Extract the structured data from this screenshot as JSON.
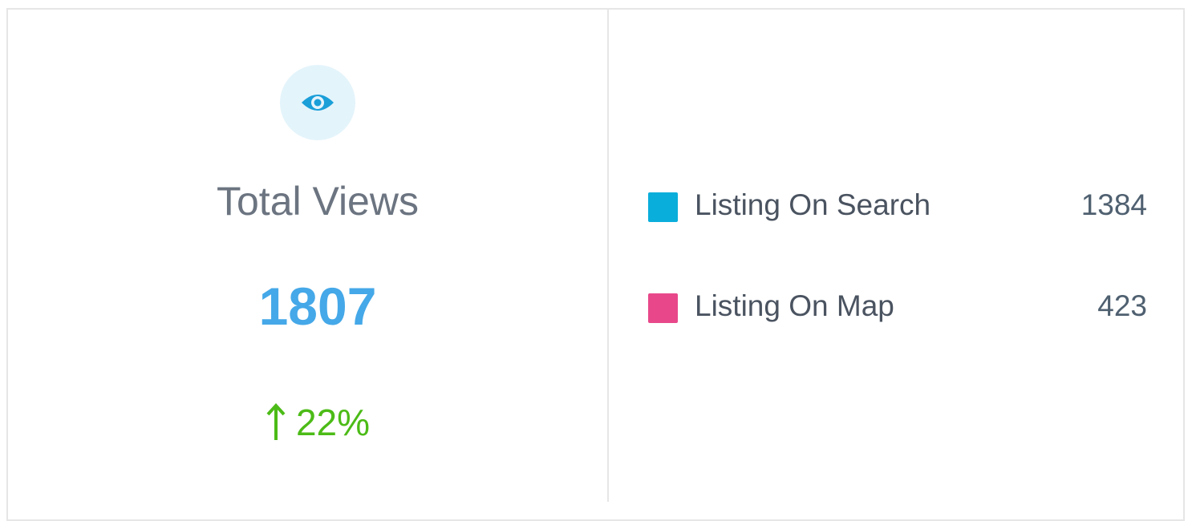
{
  "summary": {
    "title": "Total Views",
    "value": 1807,
    "change": "22%"
  },
  "breakdown": [
    {
      "label": "Listing On Search",
      "value": 1384,
      "color": "#0aaedb"
    },
    {
      "label": "Listing On Map",
      "value": 423,
      "color": "#e8488a"
    }
  ]
}
